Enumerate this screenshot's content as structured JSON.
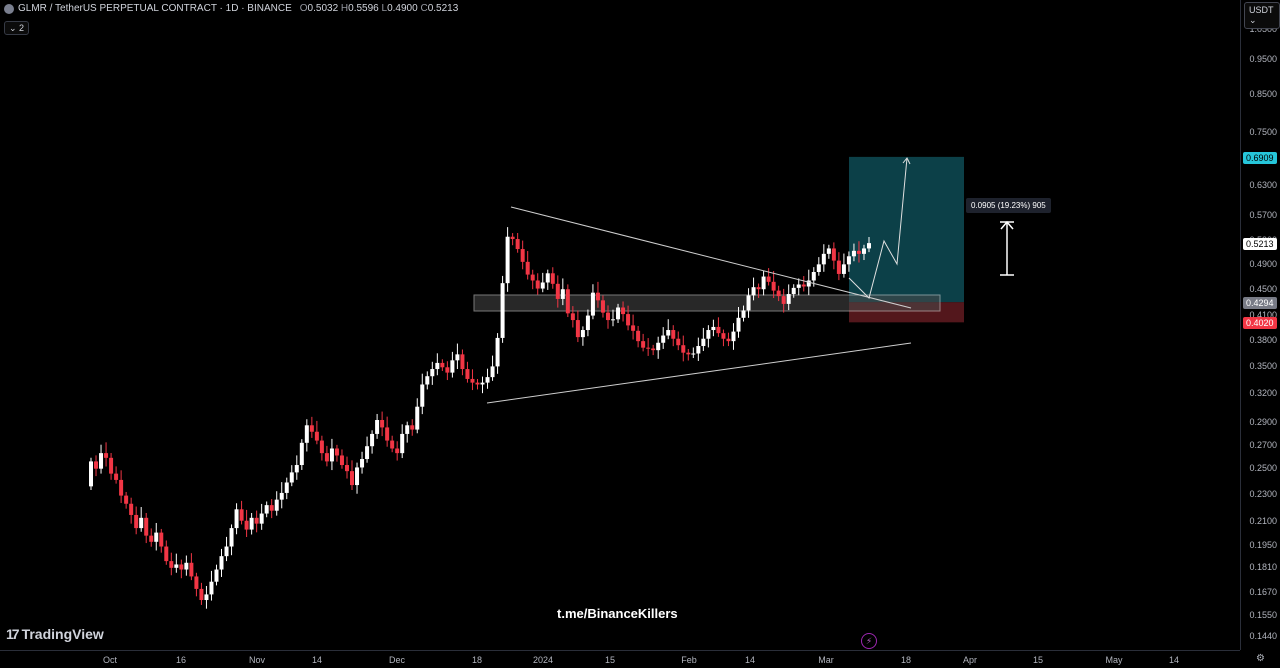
{
  "header": {
    "title": "GLMR / TetherUS PERPETUAL CONTRACT · 1D · BINANCE",
    "ohlc": {
      "o_label": "O",
      "o": "0.5032",
      "h_label": "H",
      "h": "0.5596",
      "l_label": "L",
      "l": "0.4900",
      "c_label": "C",
      "c": "0.5213"
    }
  },
  "collapse_button": "⌄ 2",
  "currency_button": "USDT ⌄",
  "price_ticks": [
    "1.0500",
    "0.9500",
    "0.8500",
    "0.7500",
    "0.6300",
    "0.5700",
    "0.5300",
    "0.4900",
    "0.4500",
    "0.4100",
    "0.3800",
    "0.3500",
    "0.3200",
    "0.2900",
    "0.2700",
    "0.2500",
    "0.2300",
    "0.2100",
    "0.1950",
    "0.1810",
    "0.1670",
    "0.1550",
    "0.1440"
  ],
  "price_labels": {
    "target": {
      "text": "0.6909",
      "bg": "#26c6da",
      "fg": "#000000"
    },
    "current": {
      "text": "0.5213",
      "bg": "#ffffff",
      "fg": "#000000"
    },
    "entry": {
      "text": "0.4294",
      "bg": "#787b86",
      "fg": "#ffffff"
    },
    "stop": {
      "text": "0.4020",
      "bg": "#f23645",
      "fg": "#ffffff"
    }
  },
  "time_ticks": [
    "Oct",
    "16",
    "Nov",
    "14",
    "Dec",
    "18",
    "2024",
    "15",
    "Feb",
    "14",
    "Mar",
    "18",
    "Apr",
    "15",
    "May",
    "14"
  ],
  "measure_label": "0.0905 (19.23%) 905",
  "watermark": "t.me/BinanceKillers",
  "logo_text": "TradingView",
  "icons": {
    "symbol": "glmr-logo-icon",
    "tradingview": "tradingview-logo-icon",
    "lightning": "lightning-icon",
    "settings": "gear-icon"
  },
  "colors": {
    "up": "#ffffff",
    "down": "#f23645",
    "target_zone": "#0e4b55",
    "stop_zone": "#5c1a1f",
    "band": "#4a4a4a"
  },
  "chart_data": {
    "type": "candlestick",
    "title": "GLMR / TetherUS PERPETUAL CONTRACT · 1D · BINANCE",
    "x_axis": [
      "Oct",
      "16",
      "Nov",
      "14",
      "Dec",
      "18",
      "2024",
      "15",
      "Feb",
      "14",
      "Mar",
      "18",
      "Apr",
      "15",
      "May",
      "14"
    ],
    "ylim": [
      0.144,
      1.05
    ],
    "log_scale": true,
    "grid": false,
    "last": {
      "open": 0.5032,
      "high": 0.5596,
      "low": 0.49,
      "close": 0.5213
    },
    "long_position": {
      "entry": 0.4294,
      "target": 0.6909,
      "stop": 0.402
    },
    "measure": "0.0905 (19.23%) 905",
    "trendlines": [
      {
        "name": "descending resistance",
        "from": [
          "Dec 20",
          0.59
        ],
        "to": [
          "Mar 18",
          0.428
        ]
      },
      {
        "name": "ascending support",
        "from": [
          "Dec 18",
          0.322
        ],
        "to": [
          "Mar 18",
          0.385
        ]
      }
    ],
    "closes": [
      0.255,
      0.249,
      0.262,
      0.258,
      0.245,
      0.24,
      0.228,
      0.222,
      0.214,
      0.205,
      0.212,
      0.2,
      0.196,
      0.202,
      0.193,
      0.184,
      0.18,
      0.182,
      0.179,
      0.183,
      0.175,
      0.168,
      0.162,
      0.165,
      0.172,
      0.179,
      0.187,
      0.193,
      0.205,
      0.218,
      0.21,
      0.204,
      0.212,
      0.208,
      0.215,
      0.221,
      0.217,
      0.225,
      0.23,
      0.238,
      0.246,
      0.252,
      0.271,
      0.287,
      0.281,
      0.273,
      0.262,
      0.255,
      0.266,
      0.26,
      0.252,
      0.247,
      0.236,
      0.25,
      0.257,
      0.268,
      0.279,
      0.292,
      0.285,
      0.273,
      0.266,
      0.262,
      0.279,
      0.287,
      0.283,
      0.305,
      0.328,
      0.337,
      0.345,
      0.352,
      0.347,
      0.341,
      0.355,
      0.362,
      0.345,
      0.334,
      0.33,
      0.328,
      0.33,
      0.336,
      0.348,
      0.382,
      0.457,
      0.532,
      0.528,
      0.511,
      0.49,
      0.47,
      0.461,
      0.449,
      0.458,
      0.472,
      0.456,
      0.434,
      0.448,
      0.414,
      0.405,
      0.383,
      0.392,
      0.411,
      0.443,
      0.432,
      0.415,
      0.405,
      0.406,
      0.422,
      0.413,
      0.398,
      0.391,
      0.378,
      0.37,
      0.369,
      0.367,
      0.376,
      0.385,
      0.392,
      0.381,
      0.373,
      0.364,
      0.362,
      0.363,
      0.372,
      0.381,
      0.392,
      0.396,
      0.388,
      0.381,
      0.378,
      0.39,
      0.408,
      0.418,
      0.439,
      0.451,
      0.448,
      0.467,
      0.459,
      0.446,
      0.438,
      0.427,
      0.441,
      0.45,
      0.455,
      0.452,
      0.461,
      0.474,
      0.486,
      0.503,
      0.512,
      0.492,
      0.471,
      0.486,
      0.499,
      0.508,
      0.503,
      0.512,
      0.521
    ]
  }
}
